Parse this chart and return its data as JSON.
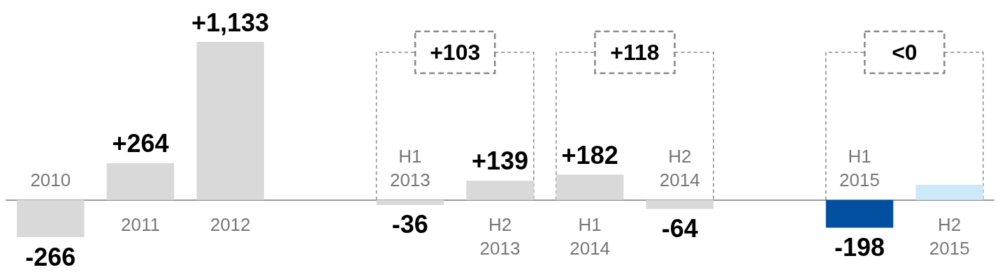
{
  "chart_data": {
    "type": "bar",
    "categories": [
      "2010",
      "2011",
      "2012",
      null,
      "H1 2013",
      "H2 2013",
      "H1 2014",
      "H2 2014",
      null,
      "H1 2015",
      "H2 2015"
    ],
    "values": [
      -266,
      264,
      1133,
      null,
      -36,
      139,
      182,
      -64,
      null,
      -198,
      110
    ],
    "colors": [
      "#d9d9d9",
      "#d9d9d9",
      "#d9d9d9",
      null,
      "#d9d9d9",
      "#d9d9d9",
      "#d9d9d9",
      "#d9d9d9",
      null,
      "#0050a0",
      "#cde9f9"
    ],
    "value_labels": [
      "-266",
      "+264",
      "+1,133",
      null,
      "-36",
      "+139",
      "+182",
      "-64",
      null,
      "-198",
      null
    ],
    "annotations": [
      "+103",
      "+118",
      "<0"
    ]
  }
}
